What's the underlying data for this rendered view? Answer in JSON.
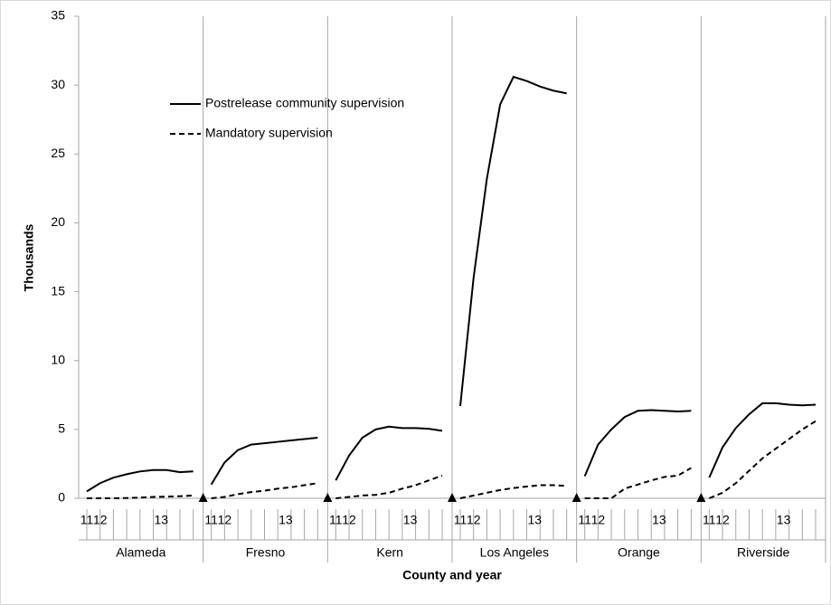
{
  "chart_data": {
    "type": "line",
    "y_label": "Thousands",
    "x_label": "County and year",
    "ylim": [
      0,
      35
    ],
    "yticks": [
      0,
      5,
      10,
      15,
      20,
      25,
      30,
      35
    ],
    "panels": [
      "Alameda",
      "Fresno",
      "Kern",
      "Los Angeles",
      "Orange",
      "Riverside"
    ],
    "categories": [
      "11",
      "12",
      null,
      null,
      null,
      null,
      "13",
      null,
      null
    ],
    "series": [
      {
        "name": "Postrelease community supervision",
        "color": "#000000",
        "dashed": false,
        "values": [
          [
            0.5,
            1.1,
            1.5,
            1.75,
            1.95,
            2.05,
            2.05,
            1.9,
            1.95
          ],
          [
            1.0,
            2.6,
            3.5,
            3.9,
            4.0,
            4.1,
            4.2,
            4.3,
            4.4
          ],
          [
            1.3,
            3.1,
            4.4,
            5.0,
            5.2,
            5.1,
            5.1,
            5.05,
            4.9
          ],
          [
            6.7,
            16.0,
            23.2,
            28.6,
            30.6,
            30.3,
            29.9,
            29.6,
            29.4
          ],
          [
            1.6,
            3.9,
            5.0,
            5.9,
            6.35,
            6.4,
            6.35,
            6.3,
            6.35
          ],
          [
            1.5,
            3.7,
            5.1,
            6.1,
            6.9,
            6.9,
            6.8,
            6.75,
            6.8
          ]
        ]
      },
      {
        "name": "Mandatory supervision",
        "color": "#000000",
        "dashed": true,
        "values": [
          [
            0,
            0,
            0,
            0.02,
            0.05,
            0.1,
            0.12,
            0.15,
            0.2
          ],
          [
            0,
            0.1,
            0.3,
            0.45,
            0.55,
            0.7,
            0.8,
            0.95,
            1.1
          ],
          [
            0,
            0.1,
            0.2,
            0.25,
            0.4,
            0.7,
            0.95,
            1.3,
            1.65
          ],
          [
            0,
            0.2,
            0.4,
            0.6,
            0.75,
            0.85,
            0.95,
            0.95,
            0.9
          ],
          [
            0,
            0,
            0,
            0.7,
            1.0,
            1.3,
            1.55,
            1.65,
            2.2
          ],
          [
            0,
            0.4,
            1.1,
            2.0,
            2.9,
            3.6,
            4.3,
            5.0,
            5.6
          ]
        ]
      }
    ]
  }
}
